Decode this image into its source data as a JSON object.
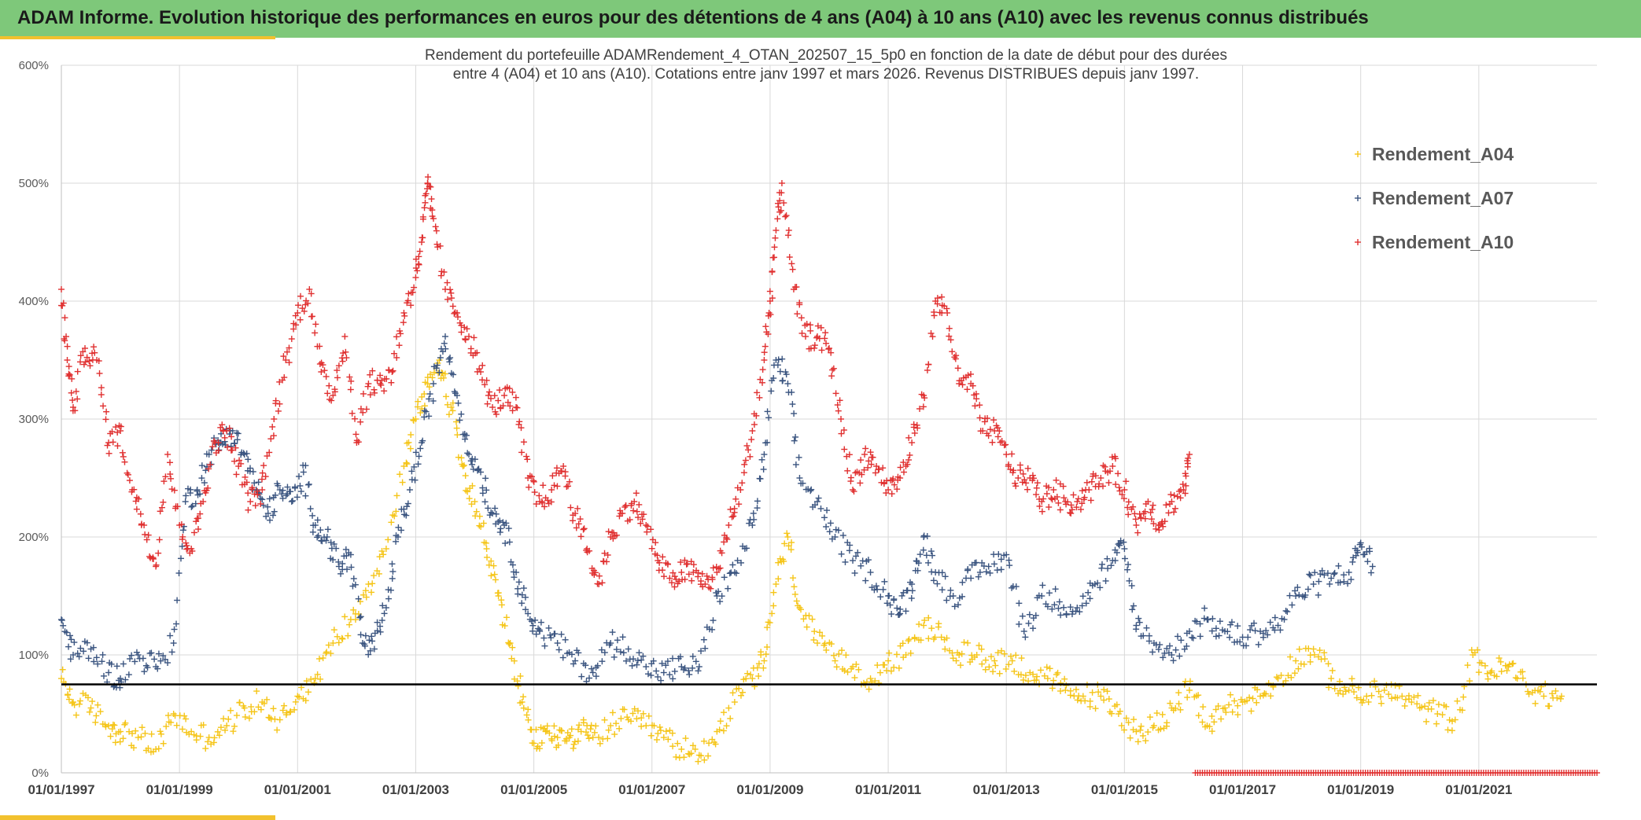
{
  "banner": {
    "title": "ADAM Informe. Evolution historique des performances en euros pour des détentions de 4 ans (A04) à 10 ans (A10) avec les revenus connus distribués"
  },
  "colors": {
    "banner_bg": "#7ec87a",
    "accent": "#f2c12e",
    "A04": "#f5c518",
    "A07": "#3b5580",
    "A10": "#e03030",
    "reference_line": "#000000"
  },
  "chart_data": {
    "type": "scatter",
    "title": [
      "Rendement du portefeuille ADAMRendement_4_OTAN_202507_15_5p0  en fonction de la date de début pour des durées",
      "entre 4 (A04) et 10 ans (A10). Cotations entre janv 1997 et mars 2026. Revenus DISTRIBUES depuis janv 1997."
    ],
    "xlabel": "",
    "ylabel": "",
    "x_range": [
      1997.0,
      2023.0
    ],
    "ylim": [
      0,
      600
    ],
    "y_ticks": [
      0,
      100,
      200,
      300,
      400,
      500,
      600
    ],
    "y_tick_labels": [
      "0%",
      "100%",
      "200%",
      "300%",
      "400%",
      "500%",
      "600%"
    ],
    "x_ticks": [
      1997,
      1999,
      2001,
      2003,
      2005,
      2007,
      2009,
      2011,
      2013,
      2015,
      2017,
      2019,
      2021
    ],
    "x_tick_labels": [
      "01/01/1997",
      "01/01/1999",
      "01/01/2001",
      "01/01/2003",
      "01/01/2005",
      "01/01/2007",
      "01/01/2009",
      "01/01/2011",
      "01/01/2013",
      "01/01/2015",
      "01/01/2017",
      "01/01/2019",
      "01/01/2021"
    ],
    "grid": true,
    "reference_line": 75,
    "legend_position": "top-right",
    "marker": "+",
    "series": [
      {
        "name": "Rendement_A04",
        "color": "#f5c518",
        "x": [
          1997.0,
          1997.2,
          1997.5,
          1997.8,
          1998.0,
          1998.3,
          1998.6,
          1998.9,
          1999.2,
          1999.5,
          1999.8,
          2000.1,
          2000.4,
          2000.7,
          2001.0,
          2001.3,
          2001.6,
          2001.9,
          2002.2,
          2002.5,
          2002.8,
          2003.0,
          2003.2,
          2003.4,
          2003.6,
          2003.8,
          2004.0,
          2004.2,
          2004.4,
          2004.6,
          2004.8,
          2005.0,
          2005.2,
          2005.4,
          2005.6,
          2005.8,
          2006.0,
          2006.3,
          2006.6,
          2006.9,
          2007.2,
          2007.5,
          2007.8,
          2008.1,
          2008.4,
          2008.7,
          2008.9,
          2009.1,
          2009.3,
          2009.5,
          2009.8,
          2010.1,
          2010.4,
          2010.7,
          2011.0,
          2011.3,
          2011.6,
          2011.9,
          2012.2,
          2012.5,
          2012.8,
          2013.1,
          2013.4,
          2013.7,
          2014.0,
          2014.3,
          2014.6,
          2014.9,
          2015.2,
          2015.5,
          2015.8,
          2016.1,
          2016.4,
          2016.7,
          2017.0,
          2017.3,
          2017.6,
          2017.9,
          2018.2,
          2018.5,
          2018.8,
          2019.1,
          2019.4,
          2019.7,
          2020.0,
          2020.3,
          2020.6,
          2020.9,
          2021.2,
          2021.5,
          2021.8,
          2022.1,
          2022.4
        ],
        "y": [
          80,
          60,
          55,
          40,
          35,
          30,
          20,
          50,
          35,
          30,
          40,
          55,
          60,
          45,
          65,
          80,
          110,
          130,
          160,
          190,
          260,
          300,
          330,
          350,
          310,
          260,
          230,
          190,
          150,
          110,
          60,
          25,
          35,
          30,
          30,
          35,
          30,
          40,
          45,
          40,
          30,
          20,
          15,
          35,
          60,
          80,
          95,
          160,
          200,
          140,
          110,
          95,
          90,
          80,
          95,
          100,
          125,
          115,
          100,
          100,
          95,
          95,
          85,
          80,
          70,
          65,
          65,
          50,
          35,
          40,
          55,
          70,
          40,
          55,
          60,
          65,
          80,
          95,
          105,
          80,
          70,
          65,
          70,
          65,
          55,
          50,
          45,
          100,
          85,
          90,
          75,
          65,
          65
        ]
      },
      {
        "name": "Rendement_A07",
        "color": "#3b5580",
        "x": [
          1997.0,
          1997.2,
          1997.5,
          1997.8,
          1998.0,
          1998.3,
          1998.6,
          1998.9,
          1999.1,
          1999.3,
          1999.5,
          1999.7,
          1999.9,
          2000.1,
          2000.3,
          2000.5,
          2000.7,
          2000.9,
          2001.1,
          2001.3,
          2001.5,
          2001.7,
          2001.9,
          2002.1,
          2002.3,
          2002.5,
          2002.7,
          2002.9,
          2003.1,
          2003.3,
          2003.5,
          2003.7,
          2003.9,
          2004.1,
          2004.3,
          2004.5,
          2004.7,
          2004.9,
          2005.1,
          2005.4,
          2005.7,
          2006.0,
          2006.3,
          2006.6,
          2006.9,
          2007.2,
          2007.5,
          2007.8,
          2008.1,
          2008.4,
          2008.7,
          2008.9,
          2009.1,
          2009.3,
          2009.5,
          2009.8,
          2010.1,
          2010.4,
          2010.7,
          2011.0,
          2011.2,
          2011.4,
          2011.6,
          2011.8,
          2012.1,
          2012.4,
          2012.7,
          2013.0,
          2013.3,
          2013.6,
          2013.9,
          2014.2,
          2014.5,
          2014.8,
          2015.0,
          2015.2,
          2015.5,
          2015.8,
          2016.1,
          2016.4,
          2016.7,
          2017.0,
          2017.3,
          2017.6,
          2017.9,
          2018.2,
          2018.5,
          2018.8,
          2019.0,
          2019.2
        ],
        "y": [
          130,
          100,
          105,
          85,
          80,
          100,
          90,
          110,
          230,
          240,
          270,
          280,
          290,
          270,
          240,
          220,
          240,
          230,
          255,
          210,
          200,
          175,
          185,
          110,
          105,
          140,
          200,
          240,
          280,
          330,
          370,
          320,
          270,
          255,
          220,
          210,
          170,
          135,
          120,
          110,
          95,
          85,
          110,
          105,
          90,
          85,
          90,
          90,
          150,
          170,
          210,
          270,
          350,
          330,
          250,
          230,
          200,
          180,
          170,
          150,
          135,
          160,
          200,
          170,
          150,
          165,
          175,
          185,
          120,
          150,
          145,
          140,
          160,
          180,
          190,
          125,
          110,
          100,
          120,
          130,
          120,
          115,
          120,
          125,
          150,
          160,
          165,
          170,
          195,
          175
        ]
      },
      {
        "name": "Rendement_A10",
        "color": "#e03030",
        "x": [
          1997.0,
          1997.1,
          1997.2,
          1997.4,
          1997.6,
          1997.8,
          1998.0,
          1998.2,
          1998.4,
          1998.6,
          1998.8,
          1999.0,
          1999.2,
          1999.4,
          1999.6,
          1999.8,
          2000.0,
          2000.2,
          2000.4,
          2000.6,
          2000.8,
          2001.0,
          2001.2,
          2001.4,
          2001.6,
          2001.8,
          2002.0,
          2002.2,
          2002.4,
          2002.6,
          2002.8,
          2003.0,
          2003.1,
          2003.2,
          2003.3,
          2003.5,
          2003.7,
          2003.9,
          2004.1,
          2004.3,
          2004.5,
          2004.7,
          2004.9,
          2005.1,
          2005.3,
          2005.5,
          2005.7,
          2005.9,
          2006.1,
          2006.3,
          2006.5,
          2006.7,
          2006.9,
          2007.1,
          2007.3,
          2007.5,
          2007.7,
          2007.9,
          2008.1,
          2008.3,
          2008.5,
          2008.7,
          2008.9,
          2009.0,
          2009.1,
          2009.2,
          2009.4,
          2009.6,
          2009.8,
          2010.0,
          2010.2,
          2010.4,
          2010.6,
          2010.8,
          2011.0,
          2011.2,
          2011.4,
          2011.6,
          2011.8,
          2012.0,
          2012.2,
          2012.4,
          2012.6,
          2012.8,
          2013.0,
          2013.2,
          2013.4,
          2013.6,
          2013.8,
          2014.0,
          2014.2,
          2014.4,
          2014.6,
          2014.8,
          2015.0,
          2015.2,
          2015.4,
          2015.6,
          2015.8,
          2016.0,
          2016.1
        ],
        "y": [
          410,
          350,
          310,
          360,
          350,
          280,
          290,
          240,
          210,
          175,
          270,
          210,
          190,
          230,
          280,
          290,
          260,
          230,
          240,
          300,
          350,
          390,
          410,
          340,
          320,
          370,
          280,
          330,
          330,
          340,
          390,
          420,
          450,
          500,
          470,
          410,
          390,
          370,
          340,
          310,
          320,
          310,
          250,
          230,
          240,
          260,
          220,
          190,
          160,
          200,
          220,
          230,
          210,
          180,
          165,
          170,
          170,
          160,
          170,
          210,
          240,
          290,
          350,
          400,
          460,
          500,
          410,
          370,
          370,
          360,
          300,
          240,
          270,
          260,
          240,
          250,
          280,
          320,
          400,
          390,
          330,
          330,
          290,
          290,
          270,
          250,
          250,
          230,
          240,
          230,
          230,
          240,
          250,
          260,
          240,
          210,
          230,
          210,
          230,
          240,
          270
        ]
      }
    ],
    "baseline_marks": {
      "name": "Rendement_A10",
      "color": "#e03030",
      "x_range": [
        2016.2,
        2023.0
      ],
      "y": 0
    }
  }
}
